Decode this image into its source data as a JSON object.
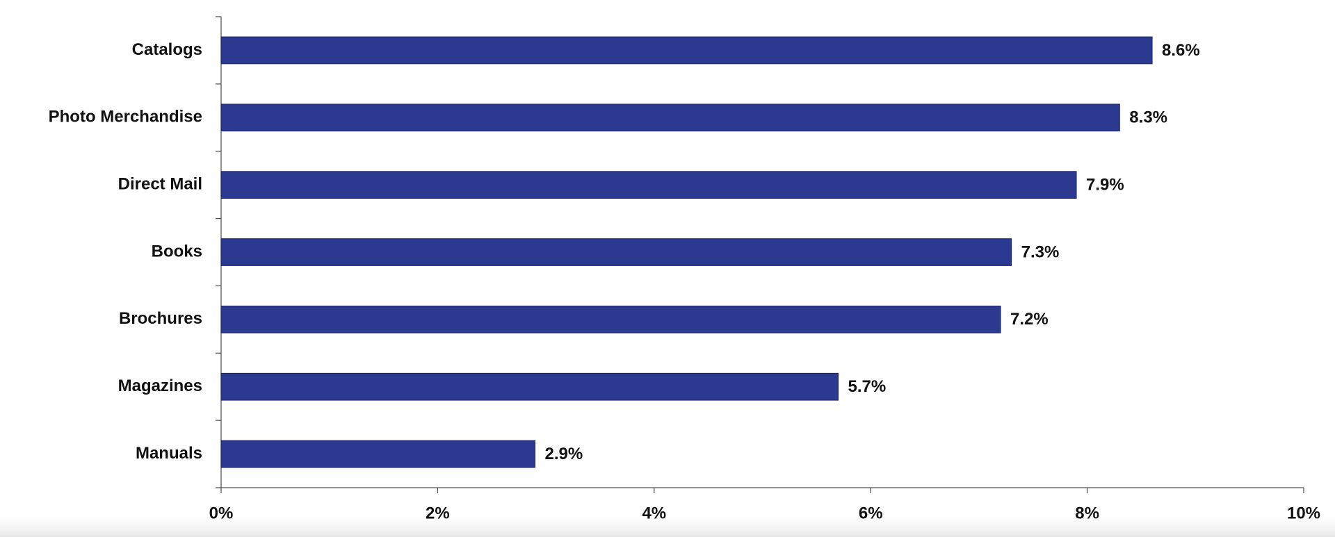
{
  "chart_data": {
    "type": "bar",
    "orientation": "horizontal",
    "categories": [
      "Catalogs",
      "Photo Merchandise",
      "Direct Mail",
      "Books",
      "Brochures",
      "Magazines",
      "Manuals"
    ],
    "values": [
      8.6,
      8.3,
      7.9,
      7.3,
      7.2,
      5.7,
      2.9
    ],
    "value_labels": [
      "8.6%",
      "8.3%",
      "7.9%",
      "7.3%",
      "7.2%",
      "5.7%",
      "2.9%"
    ],
    "color": "#2b3990",
    "xlim": [
      0,
      10
    ],
    "xticks": [
      {
        "value": 0,
        "label": "0%"
      },
      {
        "value": 2,
        "label": "2%"
      },
      {
        "value": 4,
        "label": "4%"
      },
      {
        "value": 6,
        "label": "6%"
      },
      {
        "value": 8,
        "label": "8%"
      },
      {
        "value": 10,
        "label": "10%"
      }
    ],
    "grid": false
  }
}
